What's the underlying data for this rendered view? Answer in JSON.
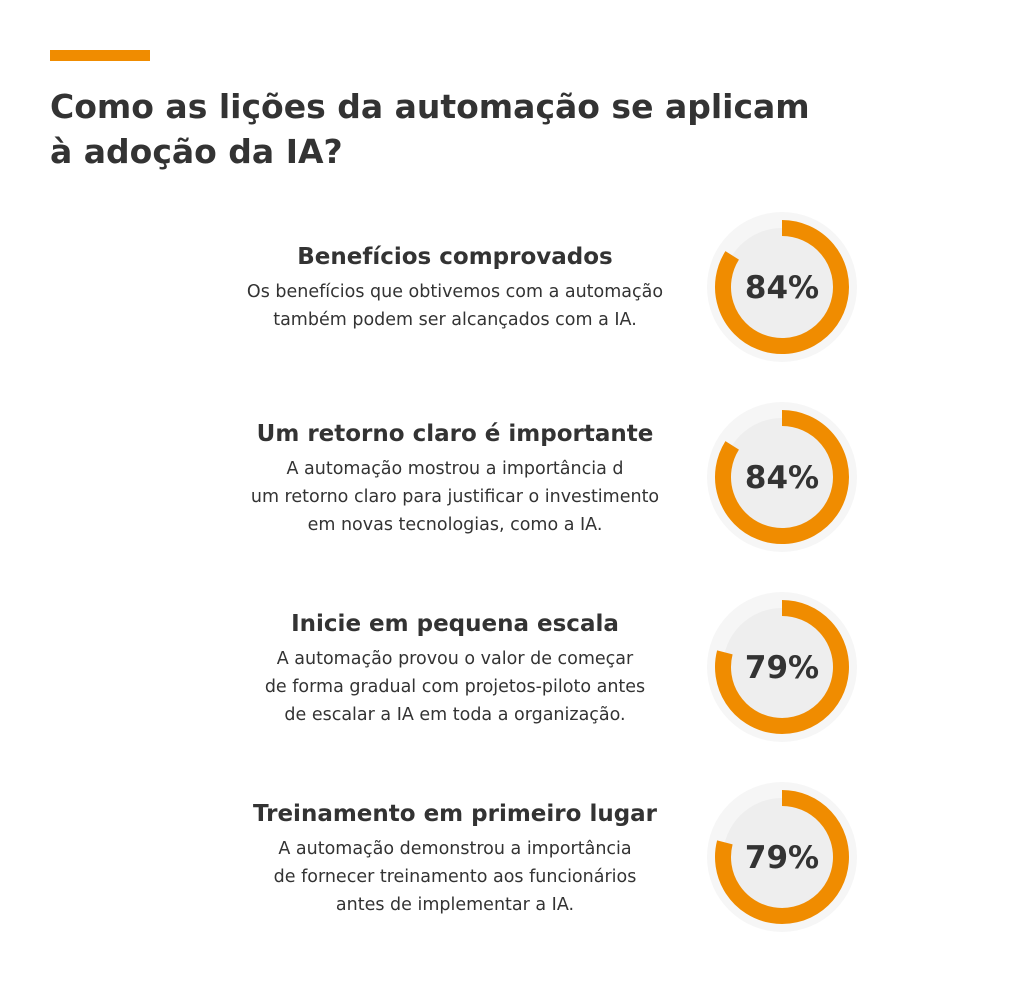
{
  "title_lines": [
    "Como as lições da automação se aplicam",
    "à adoção da IA?"
  ],
  "colors": {
    "accent": "#f08c00",
    "track": "#eeeeee",
    "text": "#333333"
  },
  "chart_data": {
    "type": "donut",
    "title": "Como as lições da automação se aplicam à adoção da IA?",
    "max": 100,
    "items": [
      {
        "heading": "Benefícios comprovados",
        "body": [
          "Os benefícios que obtivemos com a automação",
          "também podem ser alcançados com a IA."
        ],
        "value": 84,
        "label": "84%"
      },
      {
        "heading": "Um retorno claro é importante",
        "body": [
          "A automação mostrou a importância d",
          "um retorno claro para justificar o investimento",
          "em novas tecnologias, como a IA."
        ],
        "value": 84,
        "label": "84%"
      },
      {
        "heading": "Inicie em pequena escala",
        "body": [
          "A automação provou o valor de começar",
          "de forma gradual com projetos-piloto antes",
          "de escalar a IA em toda a organização."
        ],
        "value": 79,
        "label": "79%"
      },
      {
        "heading": "Treinamento em primeiro lugar",
        "body": [
          "A automação demonstrou a importância",
          "de fornecer treinamento aos funcionários",
          "antes de implementar a IA."
        ],
        "value": 79,
        "label": "79%"
      }
    ]
  }
}
